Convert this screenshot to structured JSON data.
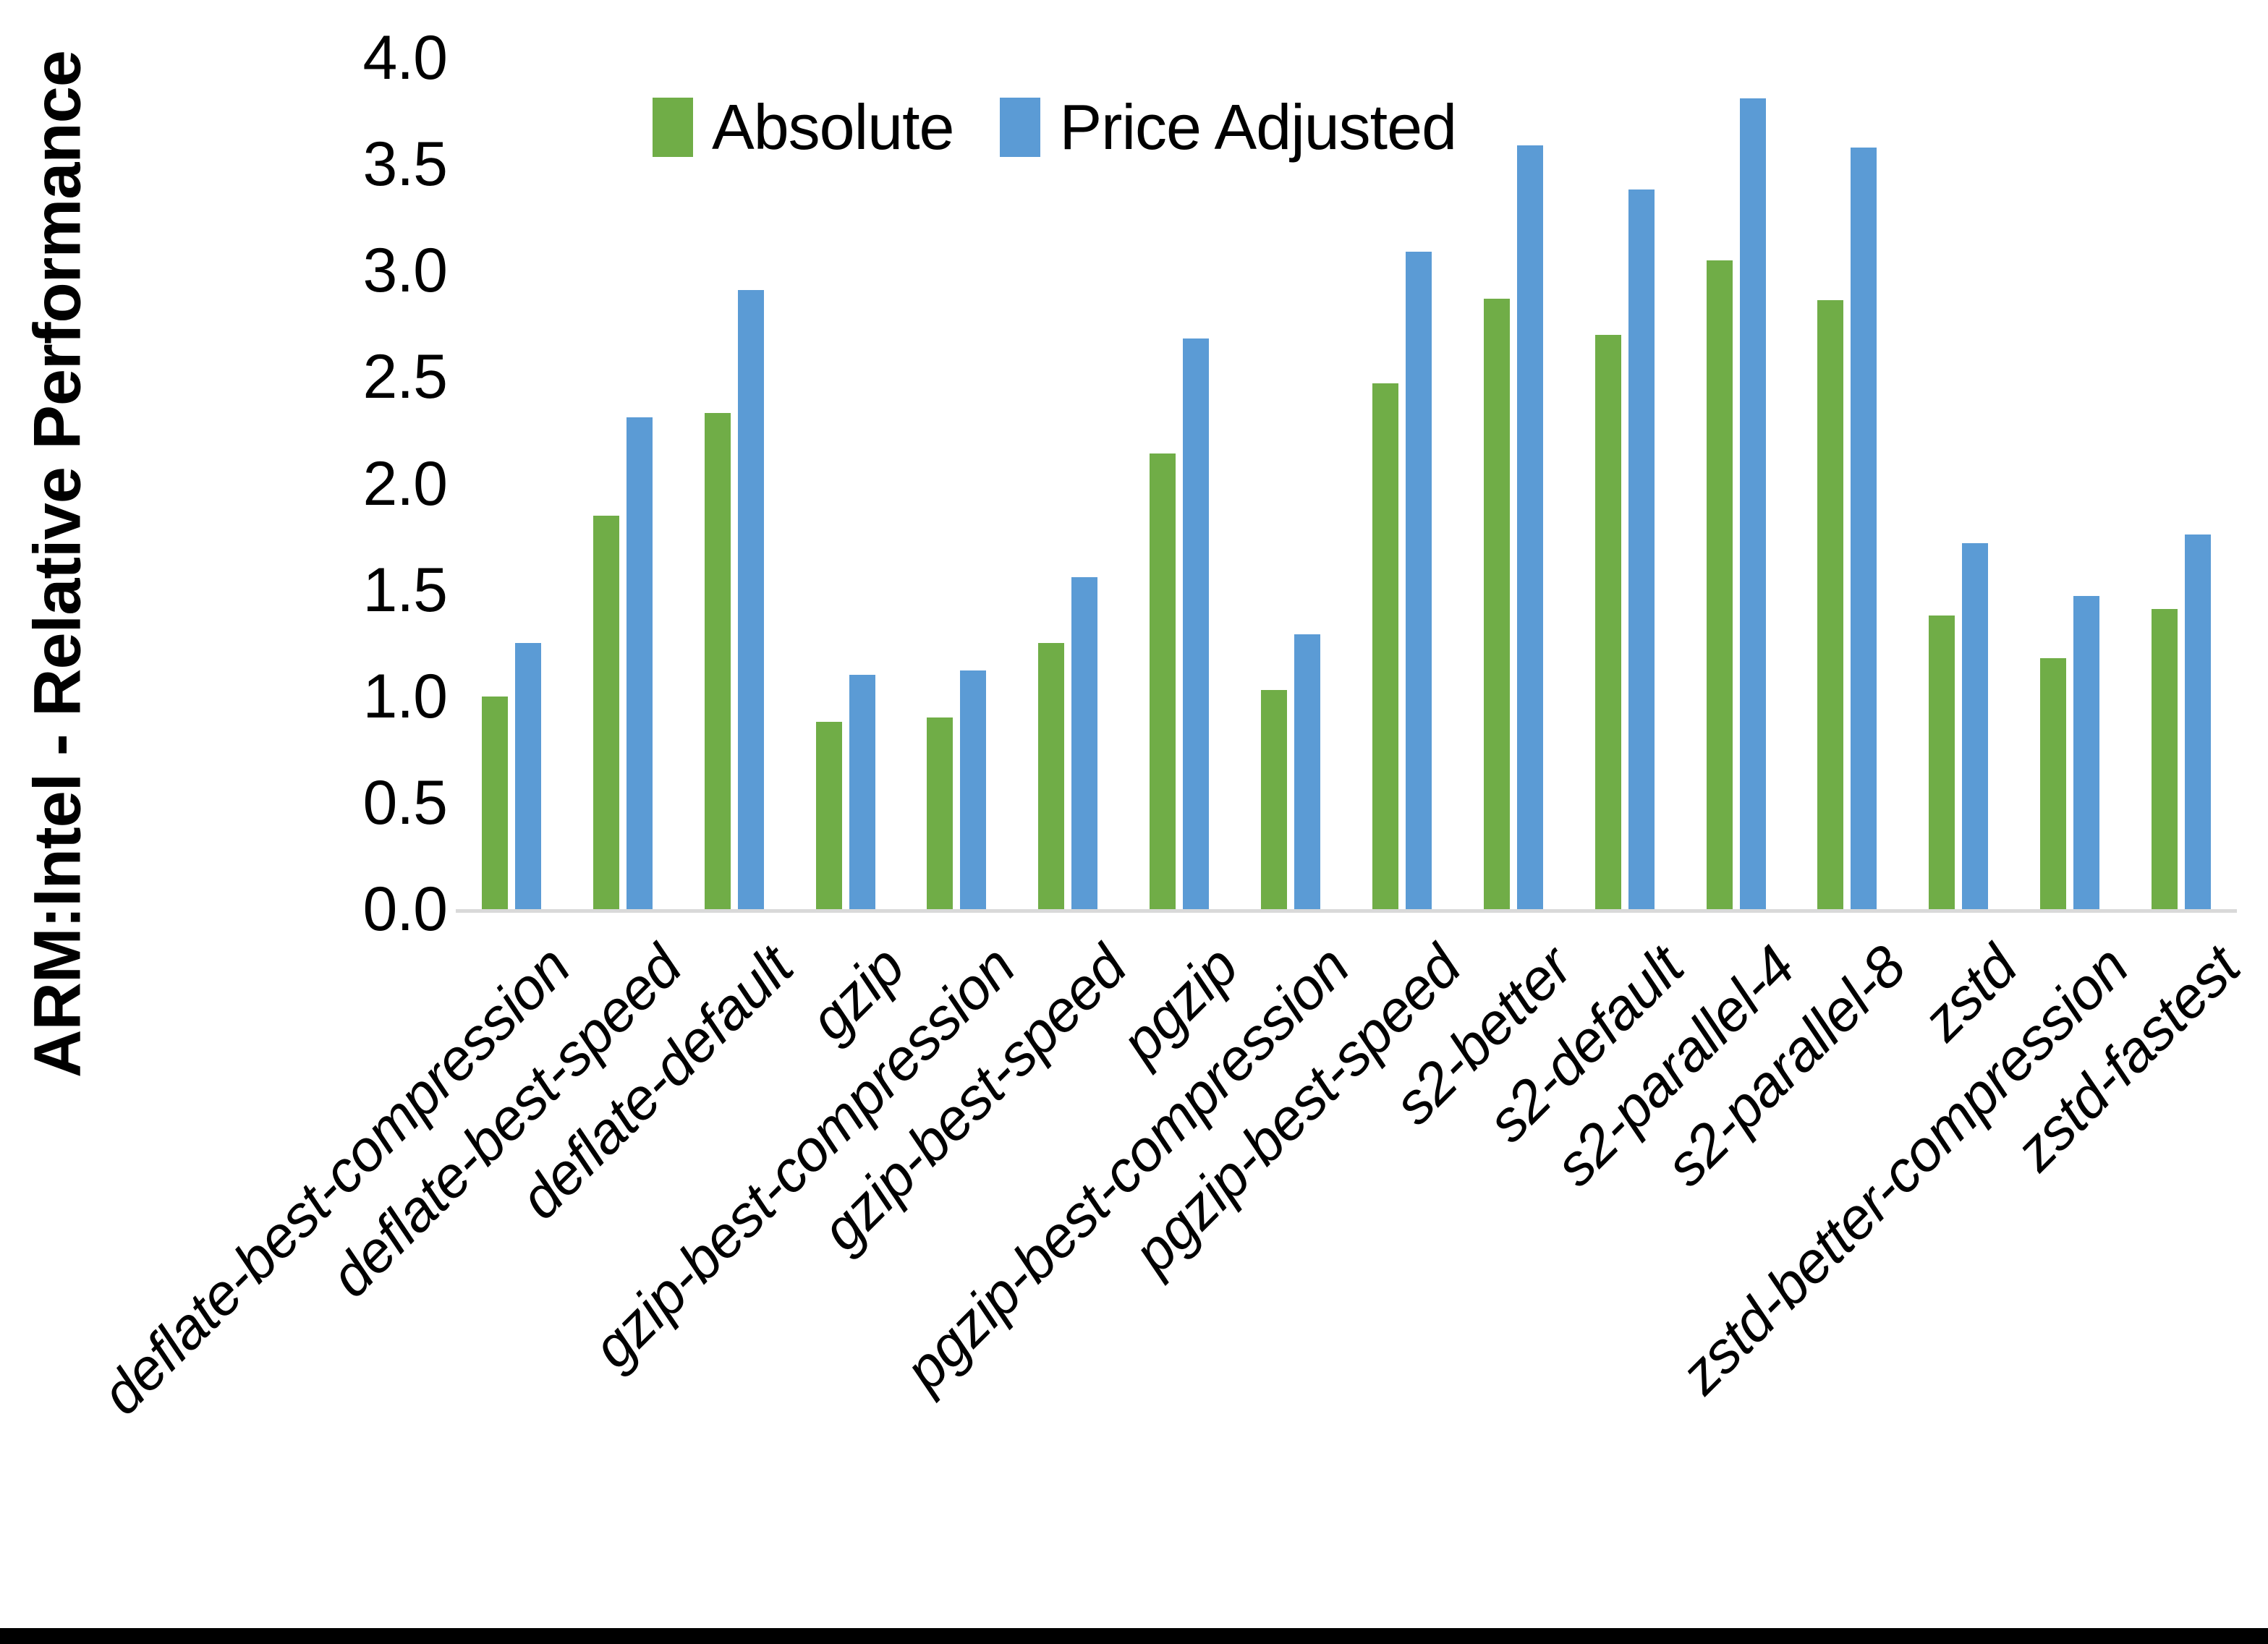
{
  "chart_data": {
    "type": "bar",
    "title": "",
    "xlabel": "",
    "ylabel": "ARM:Intel - Relative Performance",
    "ylim": [
      0.0,
      4.0
    ],
    "ytick_step": 0.5,
    "yticks": [
      "4.0",
      "3.5",
      "3.0",
      "2.5",
      "2.0",
      "1.5",
      "1.0",
      "0.5",
      "0.0"
    ],
    "grid": false,
    "legend_position": "top-center",
    "axis_line_color": "#D9D9D9",
    "categories": [
      "deflate-best-compression",
      "deflate-best-speed",
      "deflate-default",
      "gzip",
      "gzip-best-compression",
      "gzip-best-speed",
      "pgzip",
      "pgzip-best-compression",
      "pgzip-best-speed",
      "s2-better",
      "s2-default",
      "s2-parallel-4",
      "s2-parallel-8",
      "zstd",
      "zstd-better-compression",
      "zstd-fastest"
    ],
    "series": [
      {
        "name": "Absolute",
        "color": "#70AD47",
        "values": [
          1.0,
          1.85,
          2.33,
          0.88,
          0.9,
          1.25,
          2.14,
          1.03,
          2.47,
          2.87,
          2.7,
          3.05,
          2.86,
          1.38,
          1.18,
          1.41
        ]
      },
      {
        "name": "Price Adjusted",
        "color": "#5B9BD5",
        "values": [
          1.25,
          2.31,
          2.91,
          1.1,
          1.12,
          1.56,
          2.68,
          1.29,
          3.09,
          3.59,
          3.38,
          3.81,
          3.58,
          1.72,
          1.47,
          1.76
        ]
      }
    ]
  }
}
